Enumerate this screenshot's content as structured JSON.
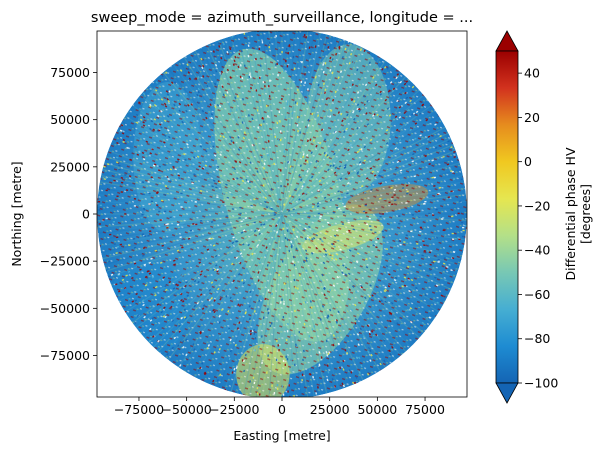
{
  "chart_data": {
    "type": "heatmap",
    "title": "sweep_mode = azimuth_surveillance, longitude = ...",
    "xlabel": "Easting [metre]",
    "ylabel": "Northing [metre]",
    "xlim": [
      -97000,
      97000
    ],
    "ylim": [
      -97000,
      97000
    ],
    "x_ticks": [
      -75000,
      -50000,
      -25000,
      0,
      25000,
      50000,
      75000
    ],
    "x_tick_labels": [
      "−75000",
      "−50000",
      "−25000",
      "0",
      "25000",
      "50000",
      "75000"
    ],
    "y_ticks": [
      75000,
      50000,
      25000,
      0,
      -25000,
      -50000,
      -75000
    ],
    "y_tick_labels": [
      "75000",
      "50000",
      "25000",
      "0",
      "−25000",
      "−50000",
      "−75000"
    ],
    "radar_range_m": 97000,
    "colorbar": {
      "label_line1": "Differential phase HV",
      "label_line2": "[degrees]",
      "range": [
        -100,
        50
      ],
      "ticks": [
        40,
        20,
        0,
        -20,
        -40,
        -60,
        -80,
        -100
      ],
      "tick_labels": [
        "40",
        "20",
        "0",
        "−20",
        "−40",
        "−60",
        "−80",
        "−100"
      ],
      "extend": "both",
      "colormap": [
        "#1464b4",
        "#1e8cd2",
        "#46aed2",
        "#78c8b4",
        "#b4e088",
        "#e6e650",
        "#f0c820",
        "#e68c1e",
        "#d2321e",
        "#9b0000"
      ]
    }
  }
}
